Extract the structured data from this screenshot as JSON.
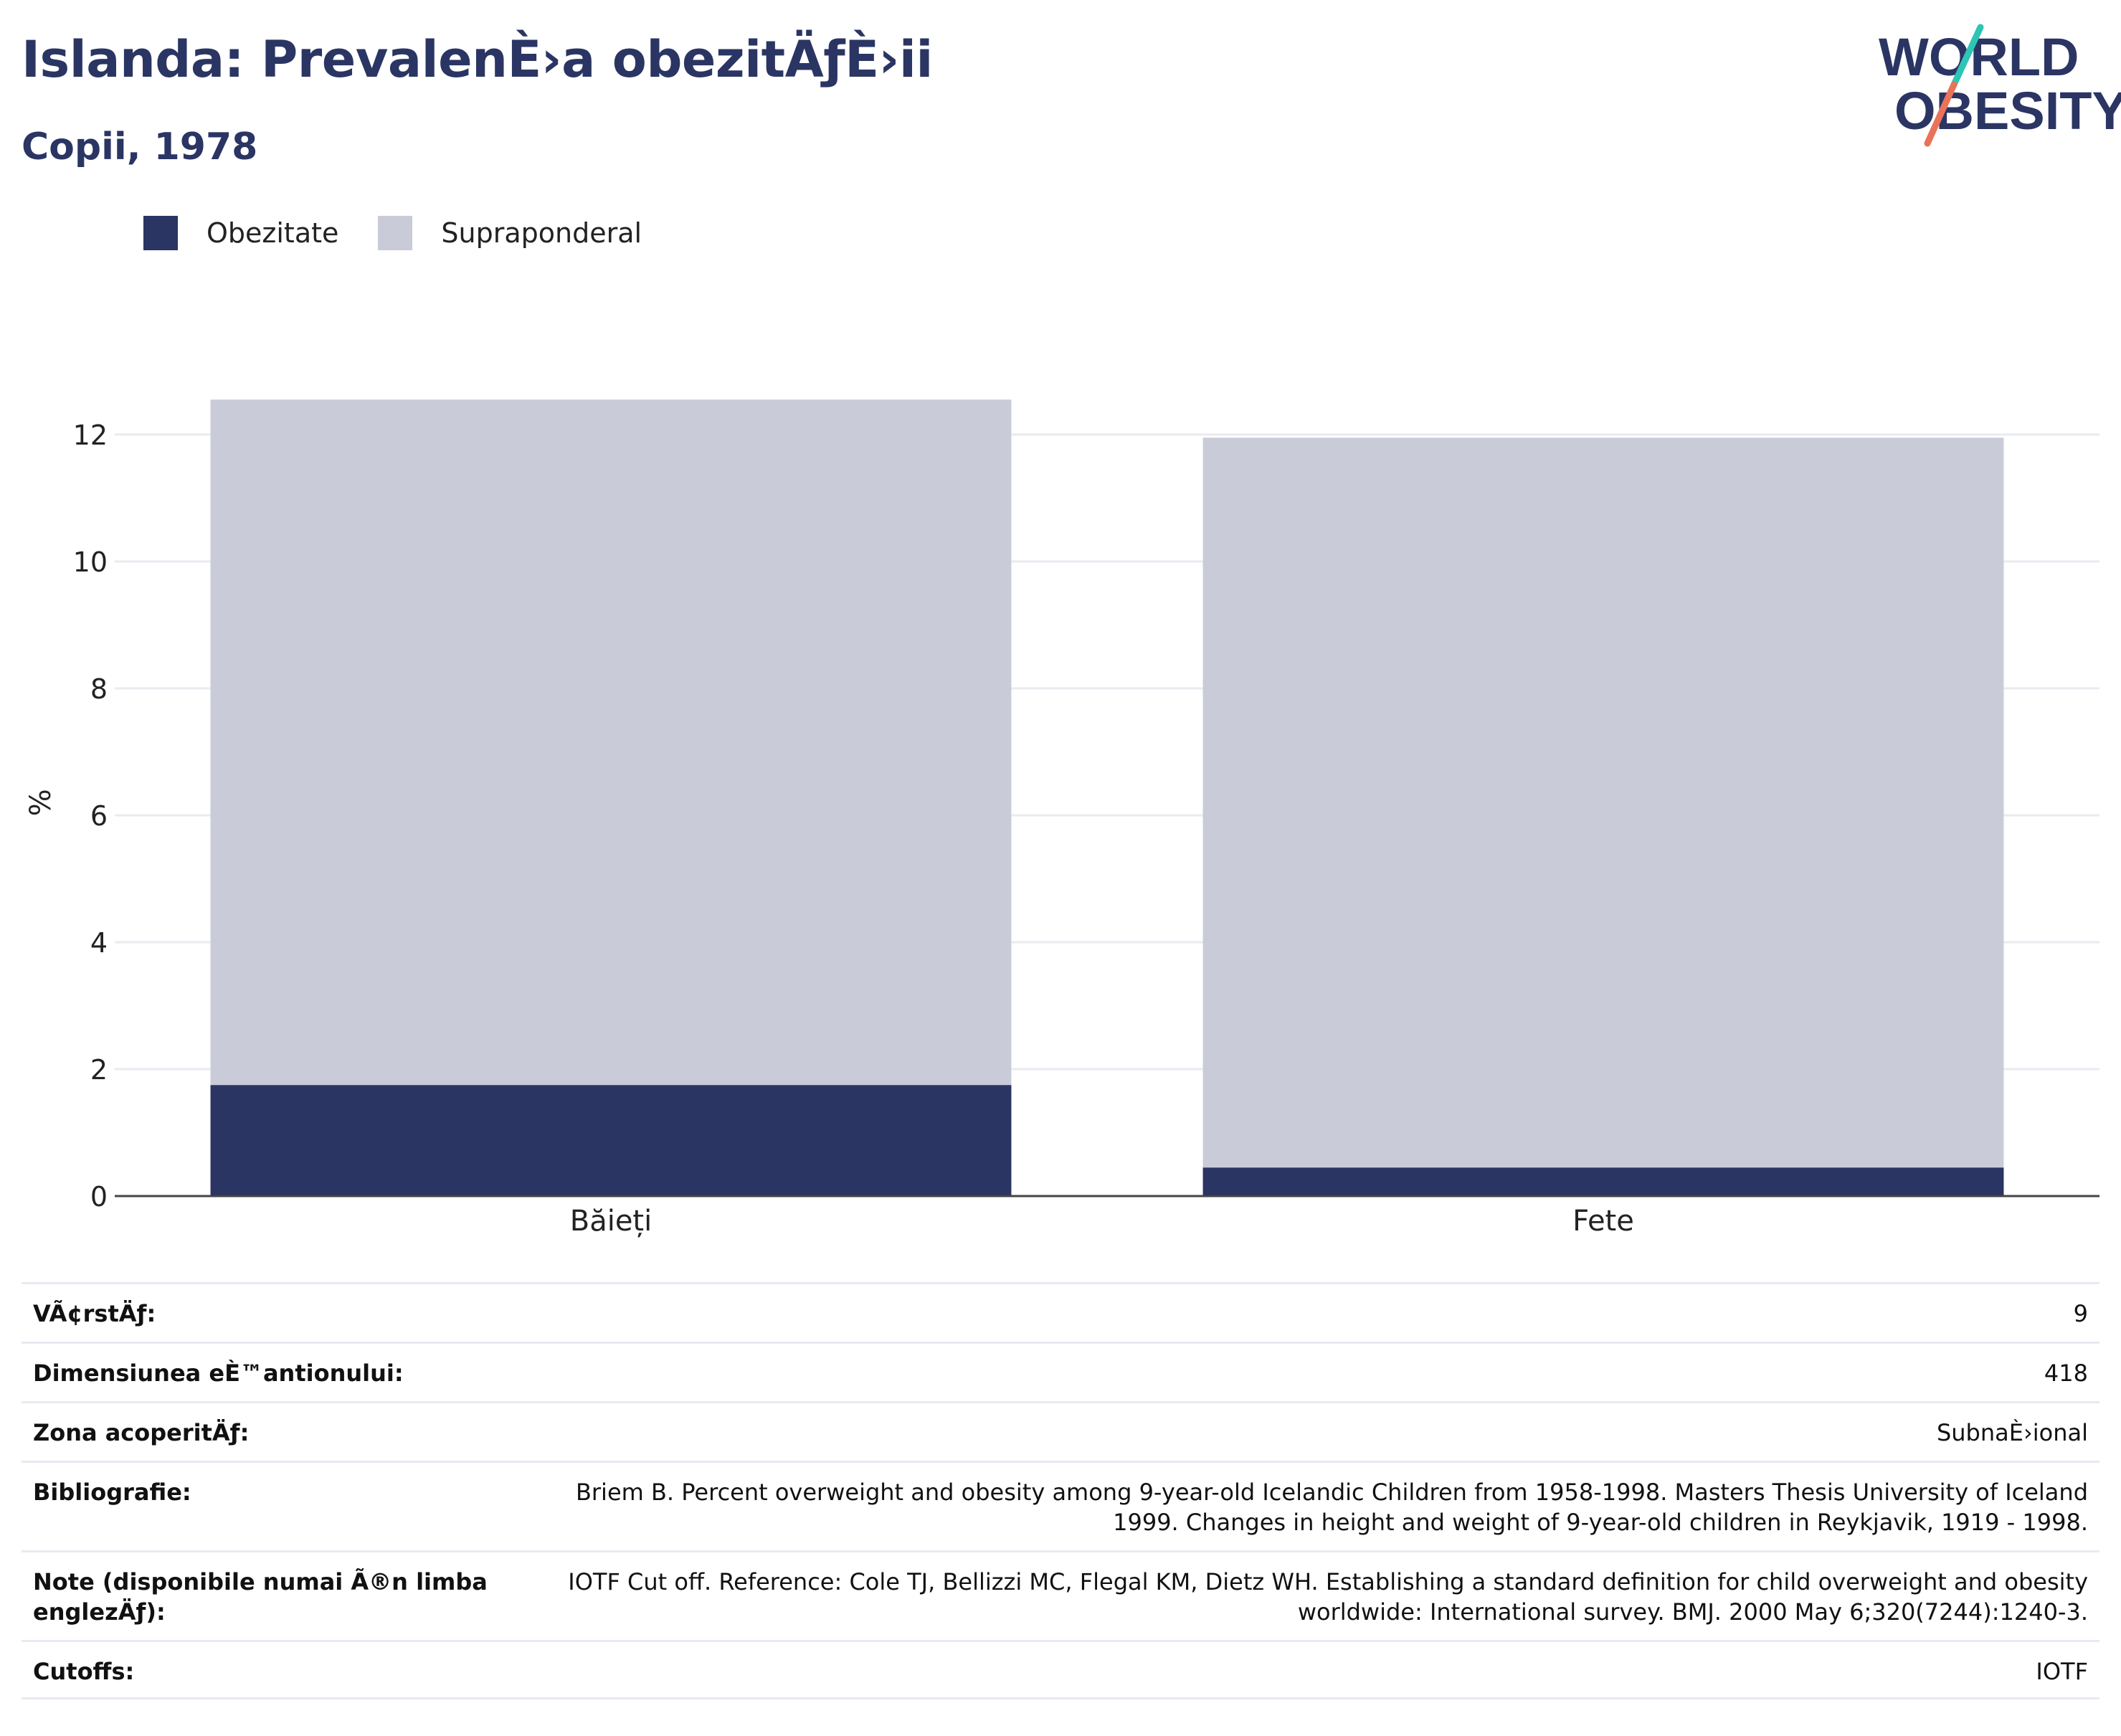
{
  "header": {
    "title": "Islanda: PrevalenÈ›a obezitÄƒÈ›ii",
    "subtitle": "Copii, 1978"
  },
  "logo": {
    "line1": "WORLD",
    "line2": "OBESITY",
    "colors": {
      "text": "#2a3563",
      "slash_top": "#2ec4b6",
      "slash_bottom": "#e8735a"
    }
  },
  "legend": {
    "items": [
      {
        "label": "Obezitate",
        "color": "#2a3563"
      },
      {
        "label": "Supraponderal",
        "color": "#c9ccd8"
      }
    ]
  },
  "chart_data": {
    "type": "bar",
    "stacked": true,
    "categories": [
      "Băieți",
      "Fete"
    ],
    "series": [
      {
        "name": "Obezitate",
        "color": "#2a3563",
        "values": [
          1.75,
          0.45
        ]
      },
      {
        "name": "Supraponderal",
        "color": "#c9ccd8",
        "values": [
          10.8,
          11.5
        ]
      }
    ],
    "ylabel": "%",
    "xlabel": "",
    "ylim": [
      0,
      12.6
    ],
    "yticks": [
      0,
      2,
      4,
      6,
      8,
      10,
      12
    ],
    "grid": true,
    "legend_position": "top-left"
  },
  "meta": {
    "rows": [
      {
        "key": "VÃ¢rstÄƒ:",
        "value": "9"
      },
      {
        "key": "Dimensiunea eÈ™antionului:",
        "value": "418"
      },
      {
        "key": "Zona acoperitÄƒ:",
        "value": "SubnaÈ›ional"
      },
      {
        "key": "Bibliografie:",
        "value": "Briem B. Percent overweight and obesity among 9-year-old Icelandic Children from 1958-1998. Masters Thesis University of Iceland 1999. Changes in height and weight of 9-year-old children in Reykjavik, 1919 - 1998."
      },
      {
        "key": "Note (disponibile numai Ã®n limba englezÄƒ):",
        "value": "IOTF Cut off. Reference: Cole TJ, Bellizzi MC, Flegal KM, Dietz WH. Establishing a standard definition for child overweight and obesity worldwide: International survey. BMJ. 2000 May 6;320(7244):1240-3."
      },
      {
        "key": "Cutoffs:",
        "value": "IOTF"
      }
    ]
  }
}
